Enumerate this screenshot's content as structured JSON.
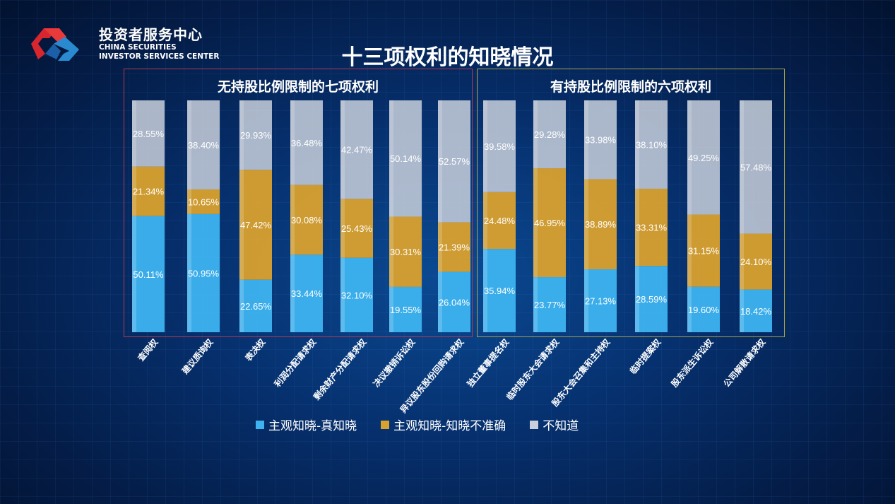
{
  "brand": {
    "name_cn": "投资者服务中心",
    "name_en_1": "CHINA SECURITIES",
    "name_en_2": "INVESTOR SERVICES CENTER"
  },
  "chart_data": {
    "type": "bar",
    "stacked": true,
    "title": "十三项权利的知晓情况",
    "groups": [
      {
        "title": "无持股比例限制的七项权利",
        "count": 7
      },
      {
        "title": "有持股比例限制的六项权利",
        "count": 6
      }
    ],
    "categories": [
      "查阅权",
      "建议质询权",
      "表决权",
      "利润分配请求权",
      "剩余财产分配请求权",
      "决议撤销诉讼权",
      "异议股东股份回购请求权",
      "独立董事提名权",
      "临时股东大会请求权",
      "股东大会召集和主持权",
      "临时提案权",
      "股东派生诉讼权",
      "公司解散请求权"
    ],
    "series": [
      {
        "name": "主观知晓-真知晓",
        "color": "#3db3f0",
        "values": [
          50.11,
          50.95,
          22.65,
          33.44,
          32.1,
          19.55,
          26.04,
          35.94,
          23.77,
          27.13,
          28.59,
          19.6,
          18.42
        ]
      },
      {
        "name": "主观知晓-知晓不准确",
        "color": "#d9a12e",
        "values": [
          21.34,
          10.65,
          47.42,
          30.08,
          25.43,
          30.31,
          21.39,
          24.48,
          46.95,
          38.89,
          33.31,
          31.15,
          24.1
        ]
      },
      {
        "name": "不知道",
        "color": "#c9d0dc",
        "values": [
          28.55,
          38.4,
          29.93,
          36.48,
          42.47,
          50.14,
          52.57,
          39.58,
          29.28,
          33.98,
          38.1,
          49.25,
          57.48
        ]
      }
    ],
    "unit": "%",
    "ylim": [
      0,
      100
    ],
    "legend_position": "bottom"
  }
}
